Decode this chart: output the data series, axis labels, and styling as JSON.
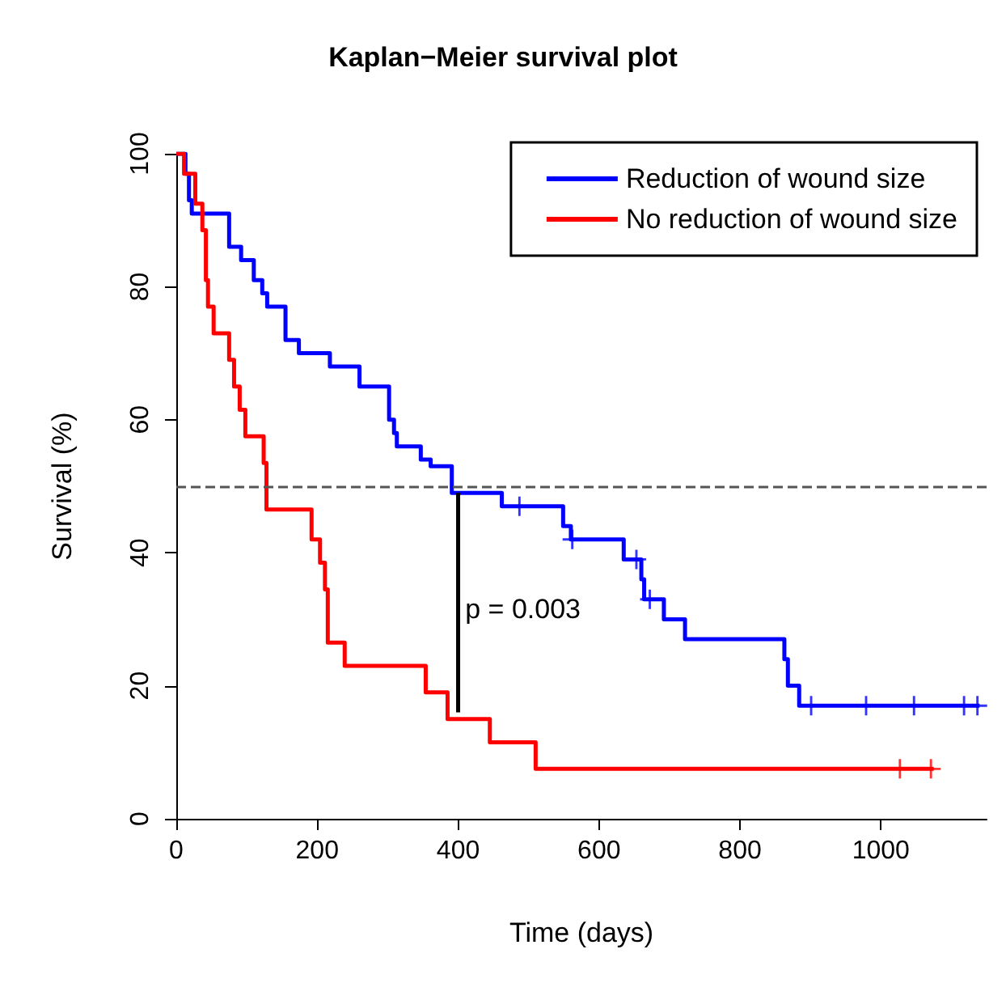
{
  "chart_data": {
    "type": "step",
    "title": "Kaplan−Meier survival plot",
    "xlabel": "Time (days)",
    "ylabel": "Survival (%)",
    "xlim": [
      0,
      1150
    ],
    "xticks": [
      0,
      200,
      400,
      600,
      800,
      1000
    ],
    "ylim": [
      0,
      100
    ],
    "yticks": [
      0,
      20,
      40,
      60,
      80,
      100
    ],
    "grid": false,
    "legend": "top right",
    "line_style": "solid",
    "series": [
      {
        "name": "Reduction of wound size",
        "color": "#0000ff",
        "x": [
          0,
          13,
          18,
          22,
          75,
          92,
          110,
          122,
          129,
          155,
          174,
          218,
          260,
          302,
          309,
          313,
          347,
          361,
          391,
          462,
          549,
          560,
          635,
          660,
          664,
          692,
          722,
          863,
          868,
          884,
          1140
        ],
        "values": [
          100,
          97,
          93,
          91,
          86,
          84,
          81,
          79,
          77,
          72,
          70,
          68,
          65,
          60,
          58,
          56,
          54,
          53,
          49,
          47,
          44,
          42,
          39,
          36,
          33,
          30,
          27,
          24,
          20,
          17,
          17
        ]
      },
      {
        "name": "No reduction of wound size",
        "color": "#ff0000",
        "x": [
          0,
          11,
          27,
          37,
          42,
          45,
          53,
          75,
          82,
          90,
          98,
          124,
          128,
          192,
          204,
          211,
          215,
          239,
          354,
          385,
          445,
          510,
          1075
        ],
        "values": [
          100,
          97,
          92.5,
          88.5,
          81,
          77,
          73,
          69,
          65,
          61.5,
          57.5,
          53.5,
          46.5,
          42,
          38.5,
          34.5,
          26.5,
          23,
          19,
          15,
          11.5,
          7.5,
          7.5
        ]
      },
      {
        "type": "scatter",
        "marker": "cross",
        "color": "#0000ff",
        "x": [
          487,
          562,
          653,
          672,
          901,
          979,
          1047,
          1118,
          1137
        ],
        "values": [
          47,
          42,
          39,
          33,
          17,
          17,
          17,
          17,
          17
        ]
      },
      {
        "type": "scatter",
        "marker": "cross",
        "color": "#ff0000",
        "x": [
          1027,
          1071
        ],
        "values": [
          7.5,
          7.5
        ]
      },
      {
        "type": "line",
        "color": "#000000",
        "x": [
          400,
          400
        ],
        "values": [
          49,
          16
        ]
      }
    ],
    "ref_lines": [
      {
        "axis": "y",
        "value": 50,
        "color": "#555555",
        "line_style": "dashed"
      }
    ],
    "annotations": [
      {
        "text": "p = 0.003",
        "x": 410,
        "y": 31.5
      }
    ]
  }
}
